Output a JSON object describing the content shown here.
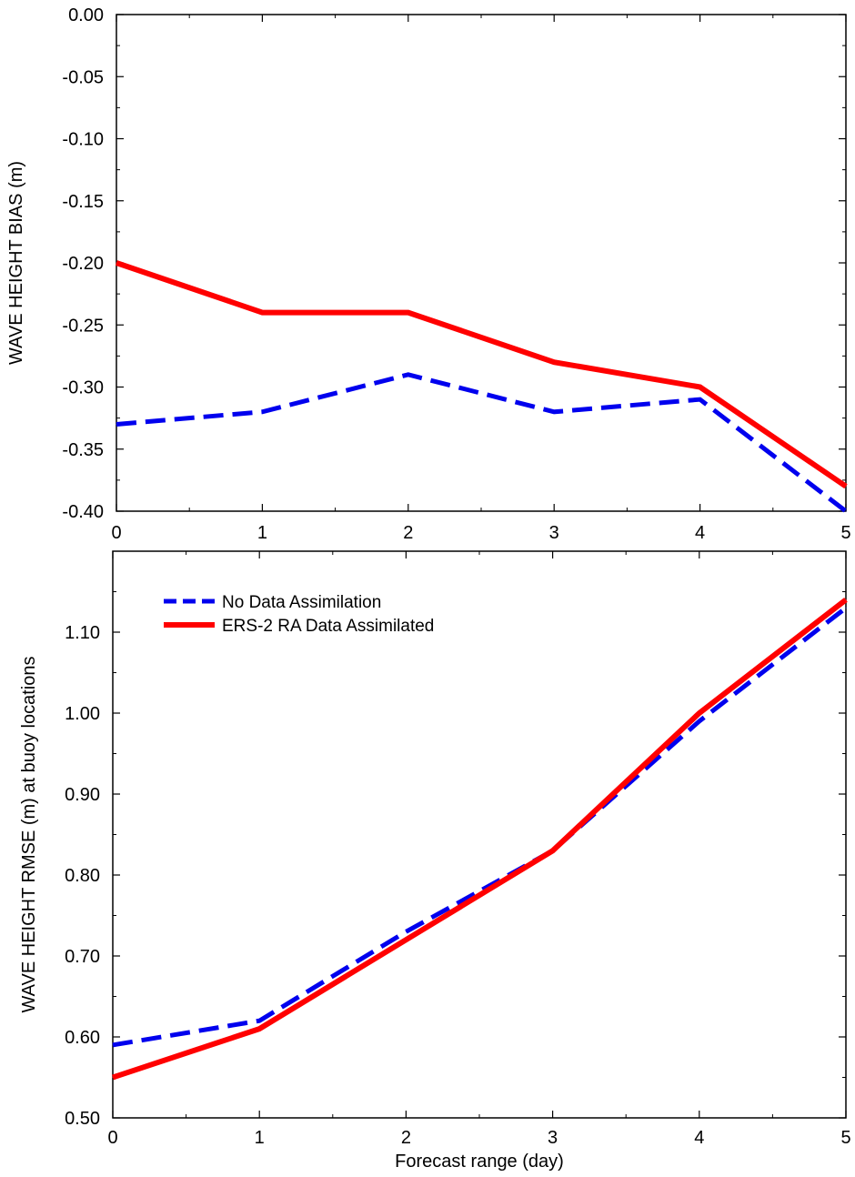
{
  "chart_data": [
    {
      "type": "line",
      "title": "",
      "xlabel": "",
      "ylabel": "WAVE HEIGHT BIAS (m)",
      "xlim": [
        0,
        5
      ],
      "ylim": [
        -0.4,
        0.0
      ],
      "x_ticks": [
        "0",
        "1",
        "2",
        "3",
        "4",
        "5"
      ],
      "y_ticks": [
        "0.00",
        "-0.05",
        "-0.10",
        "-0.15",
        "-0.20",
        "-0.25",
        "-0.30",
        "-0.35",
        "-0.40"
      ],
      "grid": false,
      "x": [
        0,
        1,
        2,
        3,
        4,
        5
      ],
      "series": [
        {
          "values": [
            -0.33,
            -0.32,
            -0.29,
            -0.32,
            -0.31,
            -0.4
          ],
          "color": "#0000ee",
          "style": "dashed"
        },
        {
          "values": [
            -0.2,
            -0.24,
            -0.24,
            -0.28,
            -0.3,
            -0.38
          ],
          "color": "#ff0000",
          "style": "solid"
        }
      ]
    },
    {
      "type": "line",
      "title": "",
      "xlabel": "Forecast range (day)",
      "ylabel": "WAVE HEIGHT RMSE (m) at buoy locations",
      "xlim": [
        0,
        5
      ],
      "ylim": [
        0.5,
        1.2
      ],
      "x_ticks": [
        "0",
        "1",
        "2",
        "3",
        "4",
        "5"
      ],
      "y_ticks": [
        "0.50",
        "0.60",
        "0.70",
        "0.80",
        "0.90",
        "1.00",
        "1.10"
      ],
      "grid": false,
      "legend_position": "top-left",
      "x": [
        0,
        1,
        2,
        3,
        4,
        5
      ],
      "series": [
        {
          "name": "No Data Assimilation",
          "values": [
            0.59,
            0.62,
            0.73,
            0.83,
            0.99,
            1.13
          ],
          "color": "#0000ee",
          "style": "dashed"
        },
        {
          "name": "ERS-2 RA Data Assimilated",
          "values": [
            0.55,
            0.61,
            0.72,
            0.83,
            1.0,
            1.14
          ],
          "color": "#ff0000",
          "style": "solid"
        }
      ]
    }
  ]
}
